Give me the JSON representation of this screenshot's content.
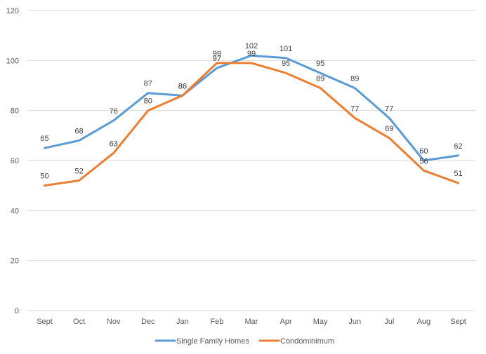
{
  "chart_data": {
    "type": "line",
    "title": "",
    "xlabel": "",
    "ylabel": "",
    "categories": [
      "Sept",
      "Oct",
      "Nov",
      "Dec",
      "Jan",
      "Feb",
      "Mar",
      "Apr",
      "May",
      "Jun",
      "Jul",
      "Aug",
      "Sept"
    ],
    "ylim": [
      0,
      120
    ],
    "yticks": [
      0,
      20,
      40,
      60,
      80,
      100,
      120
    ],
    "grid": true,
    "legend": "bottom",
    "series": [
      {
        "name": "Single Family Homes",
        "color": "#5B9BD5",
        "values": [
          65,
          68,
          76,
          87,
          86,
          97,
          102,
          101,
          95,
          89,
          77,
          60,
          62
        ]
      },
      {
        "name": "Condominimum",
        "color": "#ED7D31",
        "values": [
          50,
          52,
          63,
          80,
          86,
          99,
          99,
          95,
          89,
          77,
          69,
          56,
          51
        ]
      }
    ]
  }
}
